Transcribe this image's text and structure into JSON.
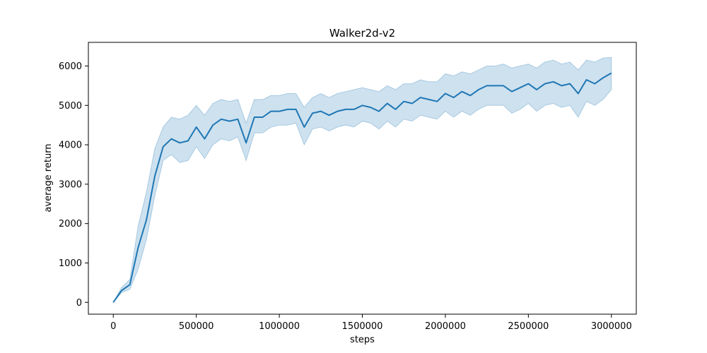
{
  "chart_data": {
    "type": "line",
    "title": "Walker2d-v2",
    "xlabel": "steps",
    "ylabel": "average return",
    "xlim": [
      -150000,
      3150000
    ],
    "ylim": [
      -300,
      6600
    ],
    "xticks": [
      0,
      500000,
      1000000,
      1500000,
      2000000,
      2500000,
      3000000
    ],
    "xtick_labels": [
      "0",
      "500000",
      "1000000",
      "1500000",
      "2000000",
      "2500000",
      "3000000"
    ],
    "yticks": [
      0,
      1000,
      2000,
      3000,
      4000,
      5000,
      6000
    ],
    "ytick_labels": [
      "0",
      "1000",
      "2000",
      "3000",
      "4000",
      "5000",
      "6000"
    ],
    "grid": false,
    "colors": {
      "line": "#1f77b4",
      "band": "#1f77b4"
    },
    "series": [
      {
        "x": [
          0,
          50000,
          100000,
          150000,
          200000,
          250000,
          300000,
          350000,
          400000,
          450000,
          500000,
          550000,
          600000,
          650000,
          700000,
          750000,
          800000,
          850000,
          900000,
          950000,
          1000000,
          1050000,
          1100000,
          1150000,
          1200000,
          1250000,
          1300000,
          1350000,
          1400000,
          1450000,
          1500000,
          1550000,
          1600000,
          1650000,
          1700000,
          1750000,
          1800000,
          1850000,
          1900000,
          1950000,
          2000000,
          2050000,
          2100000,
          2150000,
          2200000,
          2250000,
          2300000,
          2350000,
          2400000,
          2450000,
          2500000,
          2550000,
          2600000,
          2650000,
          2700000,
          2750000,
          2800000,
          2850000,
          2900000,
          2950000,
          3000000
        ],
        "y": [
          0,
          300,
          450,
          1400,
          2100,
          3200,
          3950,
          4150,
          4050,
          4100,
          4450,
          4150,
          4500,
          4650,
          4600,
          4650,
          4050,
          4700,
          4700,
          4850,
          4850,
          4900,
          4900,
          4450,
          4800,
          4850,
          4750,
          4850,
          4900,
          4900,
          5000,
          4950,
          4850,
          5050,
          4900,
          5100,
          5050,
          5200,
          5150,
          5100,
          5300,
          5200,
          5350,
          5250,
          5400,
          5500,
          5500,
          5500,
          5350,
          5450,
          5550,
          5400,
          5550,
          5600,
          5500,
          5550,
          5300,
          5650,
          5550,
          5700,
          5820
        ],
        "lower": [
          0,
          250,
          330,
          850,
          1600,
          2700,
          3600,
          3750,
          3550,
          3600,
          3950,
          3650,
          4000,
          4150,
          4100,
          4200,
          3600,
          4300,
          4300,
          4450,
          4500,
          4500,
          4550,
          4000,
          4400,
          4450,
          4350,
          4450,
          4500,
          4450,
          4600,
          4550,
          4400,
          4600,
          4450,
          4650,
          4600,
          4750,
          4700,
          4650,
          4850,
          4700,
          4850,
          4750,
          4900,
          5000,
          5000,
          5000,
          4800,
          4900,
          5050,
          4850,
          5000,
          5050,
          4950,
          5000,
          4700,
          5100,
          5000,
          5150,
          5400
        ],
        "upper": [
          0,
          380,
          580,
          1950,
          2800,
          3900,
          4450,
          4700,
          4650,
          4750,
          5000,
          4750,
          5050,
          5150,
          5100,
          5150,
          4550,
          5150,
          5150,
          5250,
          5250,
          5300,
          5300,
          4950,
          5200,
          5300,
          5200,
          5300,
          5350,
          5400,
          5450,
          5400,
          5350,
          5500,
          5400,
          5550,
          5550,
          5650,
          5600,
          5600,
          5800,
          5750,
          5850,
          5800,
          5900,
          6000,
          6000,
          6050,
          5950,
          6000,
          6050,
          5950,
          6100,
          6150,
          6050,
          6100,
          5900,
          6150,
          6100,
          6200,
          6220
        ]
      }
    ]
  }
}
